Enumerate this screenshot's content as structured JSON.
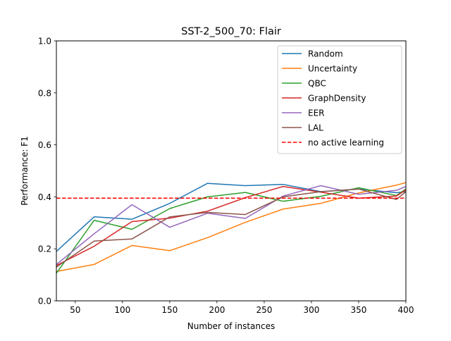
{
  "chart_data": {
    "type": "line",
    "title": "SST-2_500_70: Flair",
    "xlabel": "Number of instances",
    "ylabel": "Performance: F1",
    "xlim": [
      30,
      400
    ],
    "ylim": [
      0.0,
      1.0
    ],
    "xticks": [
      50,
      100,
      150,
      200,
      250,
      300,
      350,
      400
    ],
    "yticks": [
      "0.0",
      "0.2",
      "0.4",
      "0.6",
      "0.8",
      "1.0"
    ],
    "grid": false,
    "legend_position": "top-right",
    "x": [
      30,
      70,
      110,
      150,
      190,
      230,
      270,
      310,
      350,
      390,
      400
    ],
    "series": [
      {
        "name": "Random",
        "color": "#1f77b4",
        "values": [
          0.19,
          0.323,
          0.314,
          0.375,
          0.452,
          0.443,
          0.448,
          0.42,
          0.43,
          0.416,
          0.42
        ]
      },
      {
        "name": "Uncertainty",
        "color": "#ff7f0e",
        "values": [
          0.113,
          0.14,
          0.213,
          0.193,
          0.243,
          0.302,
          0.353,
          0.375,
          0.415,
          0.445,
          0.455
        ]
      },
      {
        "name": "QBC",
        "color": "#2ca02c",
        "values": [
          0.106,
          0.31,
          0.275,
          0.355,
          0.4,
          0.417,
          0.383,
          0.402,
          0.435,
          0.405,
          0.43
        ]
      },
      {
        "name": "GraphDensity",
        "color": "#d62728",
        "values": [
          0.136,
          0.21,
          0.305,
          0.318,
          0.345,
          0.397,
          0.44,
          0.418,
          0.395,
          0.403,
          0.427
        ]
      },
      {
        "name": "EER",
        "color": "#9467bd",
        "values": [
          0.14,
          0.258,
          0.37,
          0.283,
          0.337,
          0.317,
          0.403,
          0.443,
          0.41,
          0.425,
          0.44
        ]
      },
      {
        "name": "LAL",
        "color": "#8c564b",
        "values": [
          0.13,
          0.23,
          0.238,
          0.323,
          0.34,
          0.332,
          0.4,
          0.42,
          0.43,
          0.39,
          0.42
        ]
      }
    ],
    "reference_line": {
      "name": "no active learning",
      "color": "#ff0000",
      "style": "dashed",
      "value": 0.395
    }
  }
}
